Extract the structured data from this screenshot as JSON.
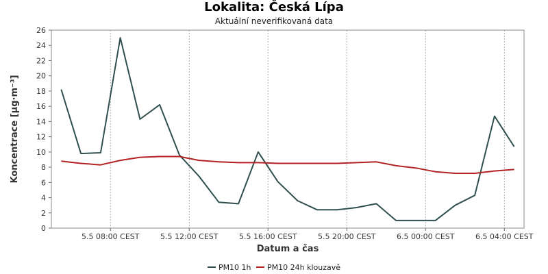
{
  "chart_data": {
    "type": "line",
    "title": "Lokalita: Česká Lípa",
    "subtitle": "Aktuální neverifikovaná data",
    "xlabel": "Datum a čas",
    "ylabel": "Koncentrace [µg·m⁻³]",
    "ylim": [
      0,
      26
    ],
    "yticks": [
      0,
      2,
      4,
      6,
      8,
      10,
      12,
      14,
      16,
      18,
      20,
      22,
      24,
      26
    ],
    "x_start_hour": 5,
    "x_end_hour": 29,
    "xticks": [
      {
        "hour": 8,
        "label": "5.5 08:00 CEST"
      },
      {
        "hour": 12,
        "label": "5.5 12:00 CEST"
      },
      {
        "hour": 16,
        "label": "5.5 16:00 CEST"
      },
      {
        "hour": 20,
        "label": "5.5 20:00 CEST"
      },
      {
        "hour": 24,
        "label": "6.5 00:00 CEST"
      },
      {
        "hour": 28,
        "label": "6.5 04:00 CEST"
      }
    ],
    "grid": true,
    "legend_position": "bottom",
    "series": [
      {
        "name": "PM10 1h",
        "color": "#2f4f4f",
        "x": [
          5.5,
          6.5,
          7.5,
          8.5,
          9.5,
          10.5,
          11.5,
          12.5,
          13.5,
          14.5,
          15.5,
          16.5,
          17.5,
          18.5,
          19.5,
          20.5,
          21.5,
          22.5,
          23.5,
          24.5,
          25.5,
          26.5,
          27.5,
          28.5
        ],
        "values": [
          18.2,
          9.8,
          9.9,
          25.0,
          14.3,
          16.2,
          9.6,
          6.8,
          3.4,
          3.2,
          10.0,
          6.1,
          3.6,
          2.4,
          2.4,
          2.7,
          3.2,
          1.0,
          1.0,
          1.0,
          3.0,
          4.3,
          14.7,
          10.7
        ]
      },
      {
        "name": "PM10 24h klouzavě",
        "color": "#b22222",
        "x": [
          5.5,
          6.5,
          7.5,
          8.5,
          9.5,
          10.5,
          11.5,
          12.5,
          13.5,
          14.5,
          15.5,
          16.5,
          17.5,
          18.5,
          19.5,
          20.5,
          21.5,
          22.5,
          23.5,
          24.5,
          25.5,
          26.5,
          27.5,
          28.5
        ],
        "values": [
          8.8,
          8.5,
          8.3,
          8.9,
          9.3,
          9.4,
          9.4,
          8.9,
          8.7,
          8.6,
          8.6,
          8.5,
          8.5,
          8.5,
          8.5,
          8.6,
          8.7,
          8.2,
          7.9,
          7.4,
          7.2,
          7.2,
          7.5,
          7.7
        ]
      }
    ]
  }
}
